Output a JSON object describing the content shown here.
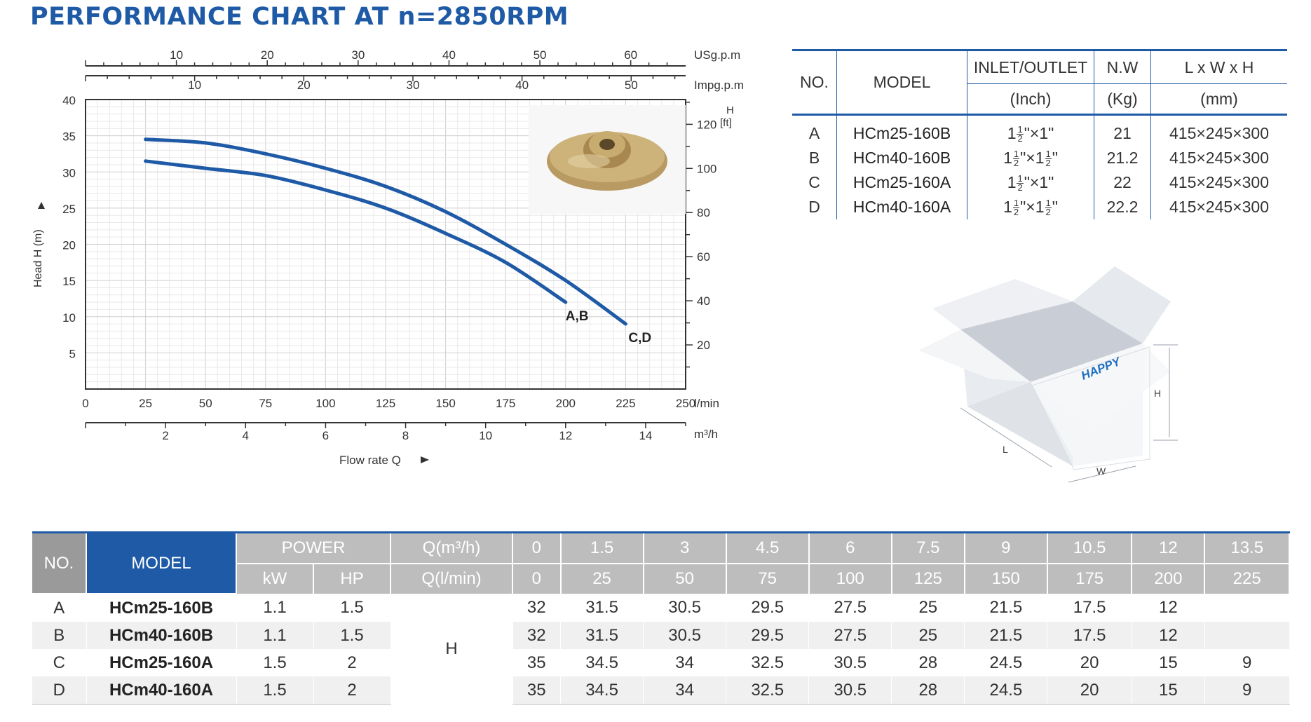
{
  "title": "PERFORMANCE CHART AT n=2850RPM",
  "chart_data": {
    "type": "line",
    "title": "PERFORMANCE CHART AT n=2850RPM",
    "xlabel": "Flow rate Q",
    "ylabel": "Head H (m)",
    "x_unit": "l/min",
    "xlim": [
      0,
      250
    ],
    "ylim": [
      0,
      40
    ],
    "x_ticks": [
      "0",
      "25",
      "50",
      "75",
      "100",
      "125",
      "150",
      "175",
      "200",
      "225",
      "250"
    ],
    "y_ticks": [
      "5",
      "10",
      "15",
      "20",
      "25",
      "30",
      "35",
      "40"
    ],
    "x_m3h_unit": "m³/h",
    "x_m3h_ticks": [
      "2",
      "4",
      "6",
      "8",
      "10",
      "12",
      "14"
    ],
    "usgpm_unit": "USg.p.m",
    "usgpm_ticks": [
      "10",
      "20",
      "30",
      "40",
      "50",
      "60"
    ],
    "impgpm_unit": "Impg.p.m",
    "impgpm_ticks": [
      "10",
      "20",
      "30",
      "40",
      "50"
    ],
    "right_axis_label_top": "H",
    "right_axis_label_unit": "[ft]",
    "right_ticks": [
      "20",
      "40",
      "60",
      "80",
      "100",
      "120"
    ],
    "grid": true,
    "series": [
      {
        "name": "A,B",
        "x": [
          25,
          50,
          75,
          100,
          125,
          150,
          175,
          200
        ],
        "y": [
          31.5,
          30.5,
          29.5,
          27.5,
          25,
          21.5,
          17.5,
          12
        ],
        "color": "#1f5aa6"
      },
      {
        "name": "C,D",
        "x": [
          25,
          50,
          75,
          100,
          125,
          150,
          175,
          200,
          225
        ],
        "y": [
          34.5,
          34,
          32.5,
          30.5,
          28,
          24.5,
          20,
          15,
          9
        ],
        "color": "#1f5aa6"
      }
    ]
  },
  "spec_table": {
    "headers": {
      "no": "NO.",
      "model": "MODEL",
      "inlet": "INLET/OUTLET",
      "inlet_unit": "(Inch)",
      "nw": "N.W",
      "nw_unit": "(Kg)",
      "lwh": "L x W x H",
      "lwh_unit": "(mm)"
    },
    "rows": [
      {
        "no": "A",
        "model": "HCm25-160B",
        "inlet_in": "1",
        "inlet_out": "1",
        "in_frac": true,
        "out_frac": false,
        "nw": "21",
        "dims": "415×245×300"
      },
      {
        "no": "B",
        "model": "HCm40-160B",
        "inlet_in": "1",
        "inlet_out": "1",
        "in_frac": true,
        "out_frac": true,
        "nw": "21.2",
        "dims": "415×245×300"
      },
      {
        "no": "C",
        "model": "HCm25-160A",
        "inlet_in": "1",
        "inlet_out": "1",
        "in_frac": true,
        "out_frac": false,
        "nw": "22",
        "dims": "415×245×300"
      },
      {
        "no": "D",
        "model": "HCm40-160A",
        "inlet_in": "1",
        "inlet_out": "1",
        "in_frac": true,
        "out_frac": true,
        "nw": "22.2",
        "dims": "415×245×300"
      }
    ],
    "frac_num": "1",
    "frac_den": "2",
    "inch_mark": "\"",
    "times": "×"
  },
  "box": {
    "brand": "HAPPY",
    "label_h": "H",
    "label_l": "L",
    "label_w": "W"
  },
  "perf_table": {
    "no_header": "NO.",
    "model_header": "MODEL",
    "power_header": "POWER",
    "kw_header": "kW",
    "hp_header": "HP",
    "q_m3h_label": "Q(m³/h)",
    "q_lmin_label": "Q(l/min)",
    "q_m3h": [
      "0",
      "1.5",
      "3",
      "4.5",
      "6",
      "7.5",
      "9",
      "10.5",
      "12",
      "13.5"
    ],
    "q_lmin": [
      "0",
      "25",
      "50",
      "75",
      "100",
      "125",
      "150",
      "175",
      "200",
      "225"
    ],
    "h_label": "H",
    "rows": [
      {
        "no": "A",
        "model": "HCm25-160B",
        "kw": "1.1",
        "hp": "1.5",
        "h": [
          "32",
          "31.5",
          "30.5",
          "29.5",
          "27.5",
          "25",
          "21.5",
          "17.5",
          "12",
          ""
        ]
      },
      {
        "no": "B",
        "model": "HCm40-160B",
        "kw": "1.1",
        "hp": "1.5",
        "h": [
          "32",
          "31.5",
          "30.5",
          "29.5",
          "27.5",
          "25",
          "21.5",
          "17.5",
          "12",
          ""
        ]
      },
      {
        "no": "C",
        "model": "HCm25-160A",
        "kw": "1.5",
        "hp": "2",
        "h": [
          "35",
          "34.5",
          "34",
          "32.5",
          "30.5",
          "28",
          "24.5",
          "20",
          "15",
          "9"
        ]
      },
      {
        "no": "D",
        "model": "HCm40-160A",
        "kw": "1.5",
        "hp": "2",
        "h": [
          "35",
          "34.5",
          "34",
          "32.5",
          "30.5",
          "28",
          "24.5",
          "20",
          "15",
          "9"
        ]
      }
    ]
  }
}
